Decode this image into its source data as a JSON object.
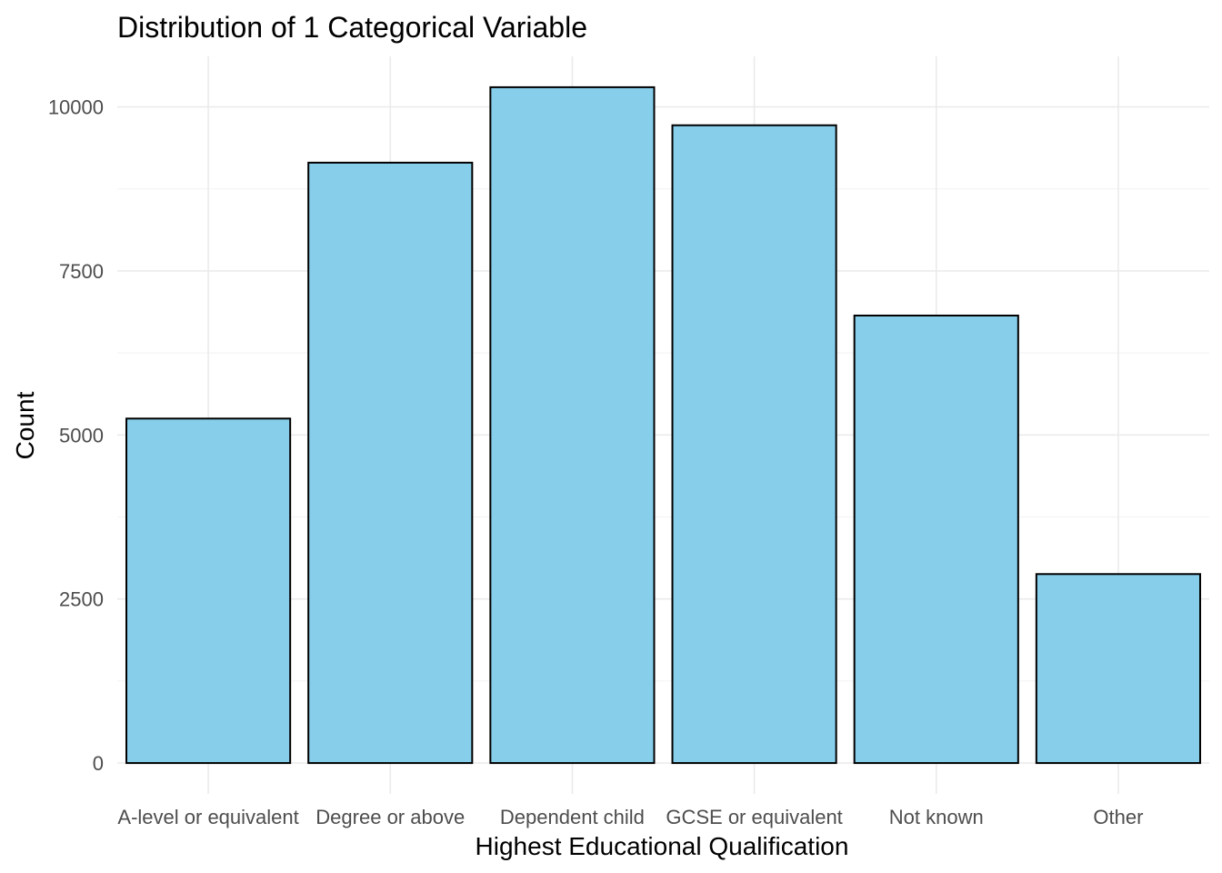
{
  "chart_data": {
    "type": "bar",
    "title": "Distribution of 1 Categorical Variable",
    "xlabel": "Highest Educational Qualification",
    "ylabel": "Count",
    "categories": [
      "A-level or equivalent",
      "Degree or above",
      "Dependent child",
      "GCSE or equivalent",
      "Not known",
      "Other"
    ],
    "values": [
      5250,
      9150,
      10300,
      9720,
      6820,
      2880
    ],
    "ylim": [
      -470,
      10770
    ],
    "yticks": [
      0,
      2500,
      5000,
      7500,
      10000
    ],
    "ytick_labels": [
      "0",
      "2500",
      "5000",
      "7500",
      "10000"
    ],
    "grid": true,
    "legend": "none",
    "colors": {
      "bar_fill": "#87ceeb",
      "bar_outline": "#000000",
      "grid": "#ebebeb",
      "tick_text": "#4d4d4d"
    }
  }
}
